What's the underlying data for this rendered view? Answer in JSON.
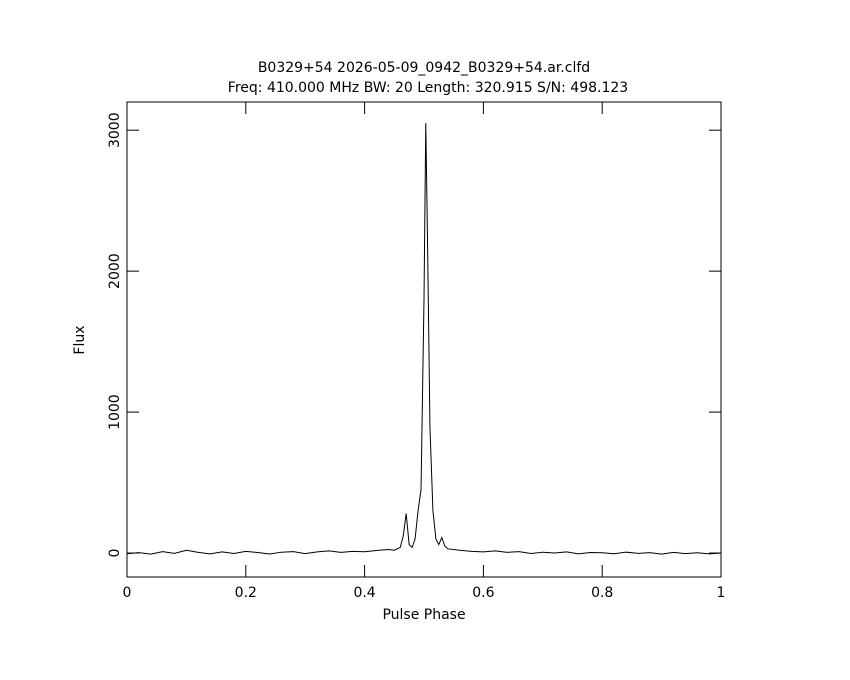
{
  "chart_data": {
    "type": "line",
    "title": "B0329+54 2026-05-09_0942_B0329+54.ar.clfd",
    "subtitle": "Freq: 410.000 MHz BW: 20 Length: 320.915 S/N: 498.123",
    "x_label": "Pulse Phase",
    "y_label": "Flux",
    "x": [
      0,
      0.02,
      0.04,
      0.06,
      0.08,
      0.1,
      0.12,
      0.14,
      0.16,
      0.18,
      0.2,
      0.22,
      0.24,
      0.26,
      0.28,
      0.3,
      0.32,
      0.34,
      0.36,
      0.38,
      0.4,
      0.42,
      0.44,
      0.45,
      0.46,
      0.465,
      0.47,
      0.475,
      0.48,
      0.485,
      0.49,
      0.495,
      0.5,
      0.503,
      0.506,
      0.51,
      0.515,
      0.52,
      0.525,
      0.53,
      0.535,
      0.54,
      0.56,
      0.58,
      0.6,
      0.62,
      0.64,
      0.66,
      0.68,
      0.7,
      0.72,
      0.74,
      0.76,
      0.78,
      0.8,
      0.82,
      0.84,
      0.86,
      0.88,
      0.9,
      0.92,
      0.94,
      0.96,
      0.98,
      1.0
    ],
    "series": [
      {
        "color": "#000000",
        "values": [
          -5,
          3,
          -8,
          10,
          -2,
          20,
          5,
          -6,
          8,
          -3,
          12,
          4,
          -7,
          6,
          10,
          -4,
          8,
          15,
          5,
          12,
          9,
          18,
          25,
          20,
          40,
          120,
          280,
          60,
          40,
          100,
          300,
          450,
          1800,
          3050,
          2200,
          900,
          300,
          100,
          60,
          110,
          50,
          30,
          20,
          12,
          8,
          15,
          5,
          10,
          -3,
          6,
          0,
          8,
          -6,
          4,
          2,
          -5,
          6,
          -2,
          3,
          -8,
          5,
          -4,
          2,
          -6,
          0
        ]
      }
    ],
    "xlim": [
      0,
      1
    ],
    "xticks": [
      0,
      0.2,
      0.4,
      0.6,
      0.8,
      1
    ],
    "ylim": [
      -170,
      3200
    ],
    "yticks": [
      0,
      1000,
      2000,
      3000
    ]
  }
}
